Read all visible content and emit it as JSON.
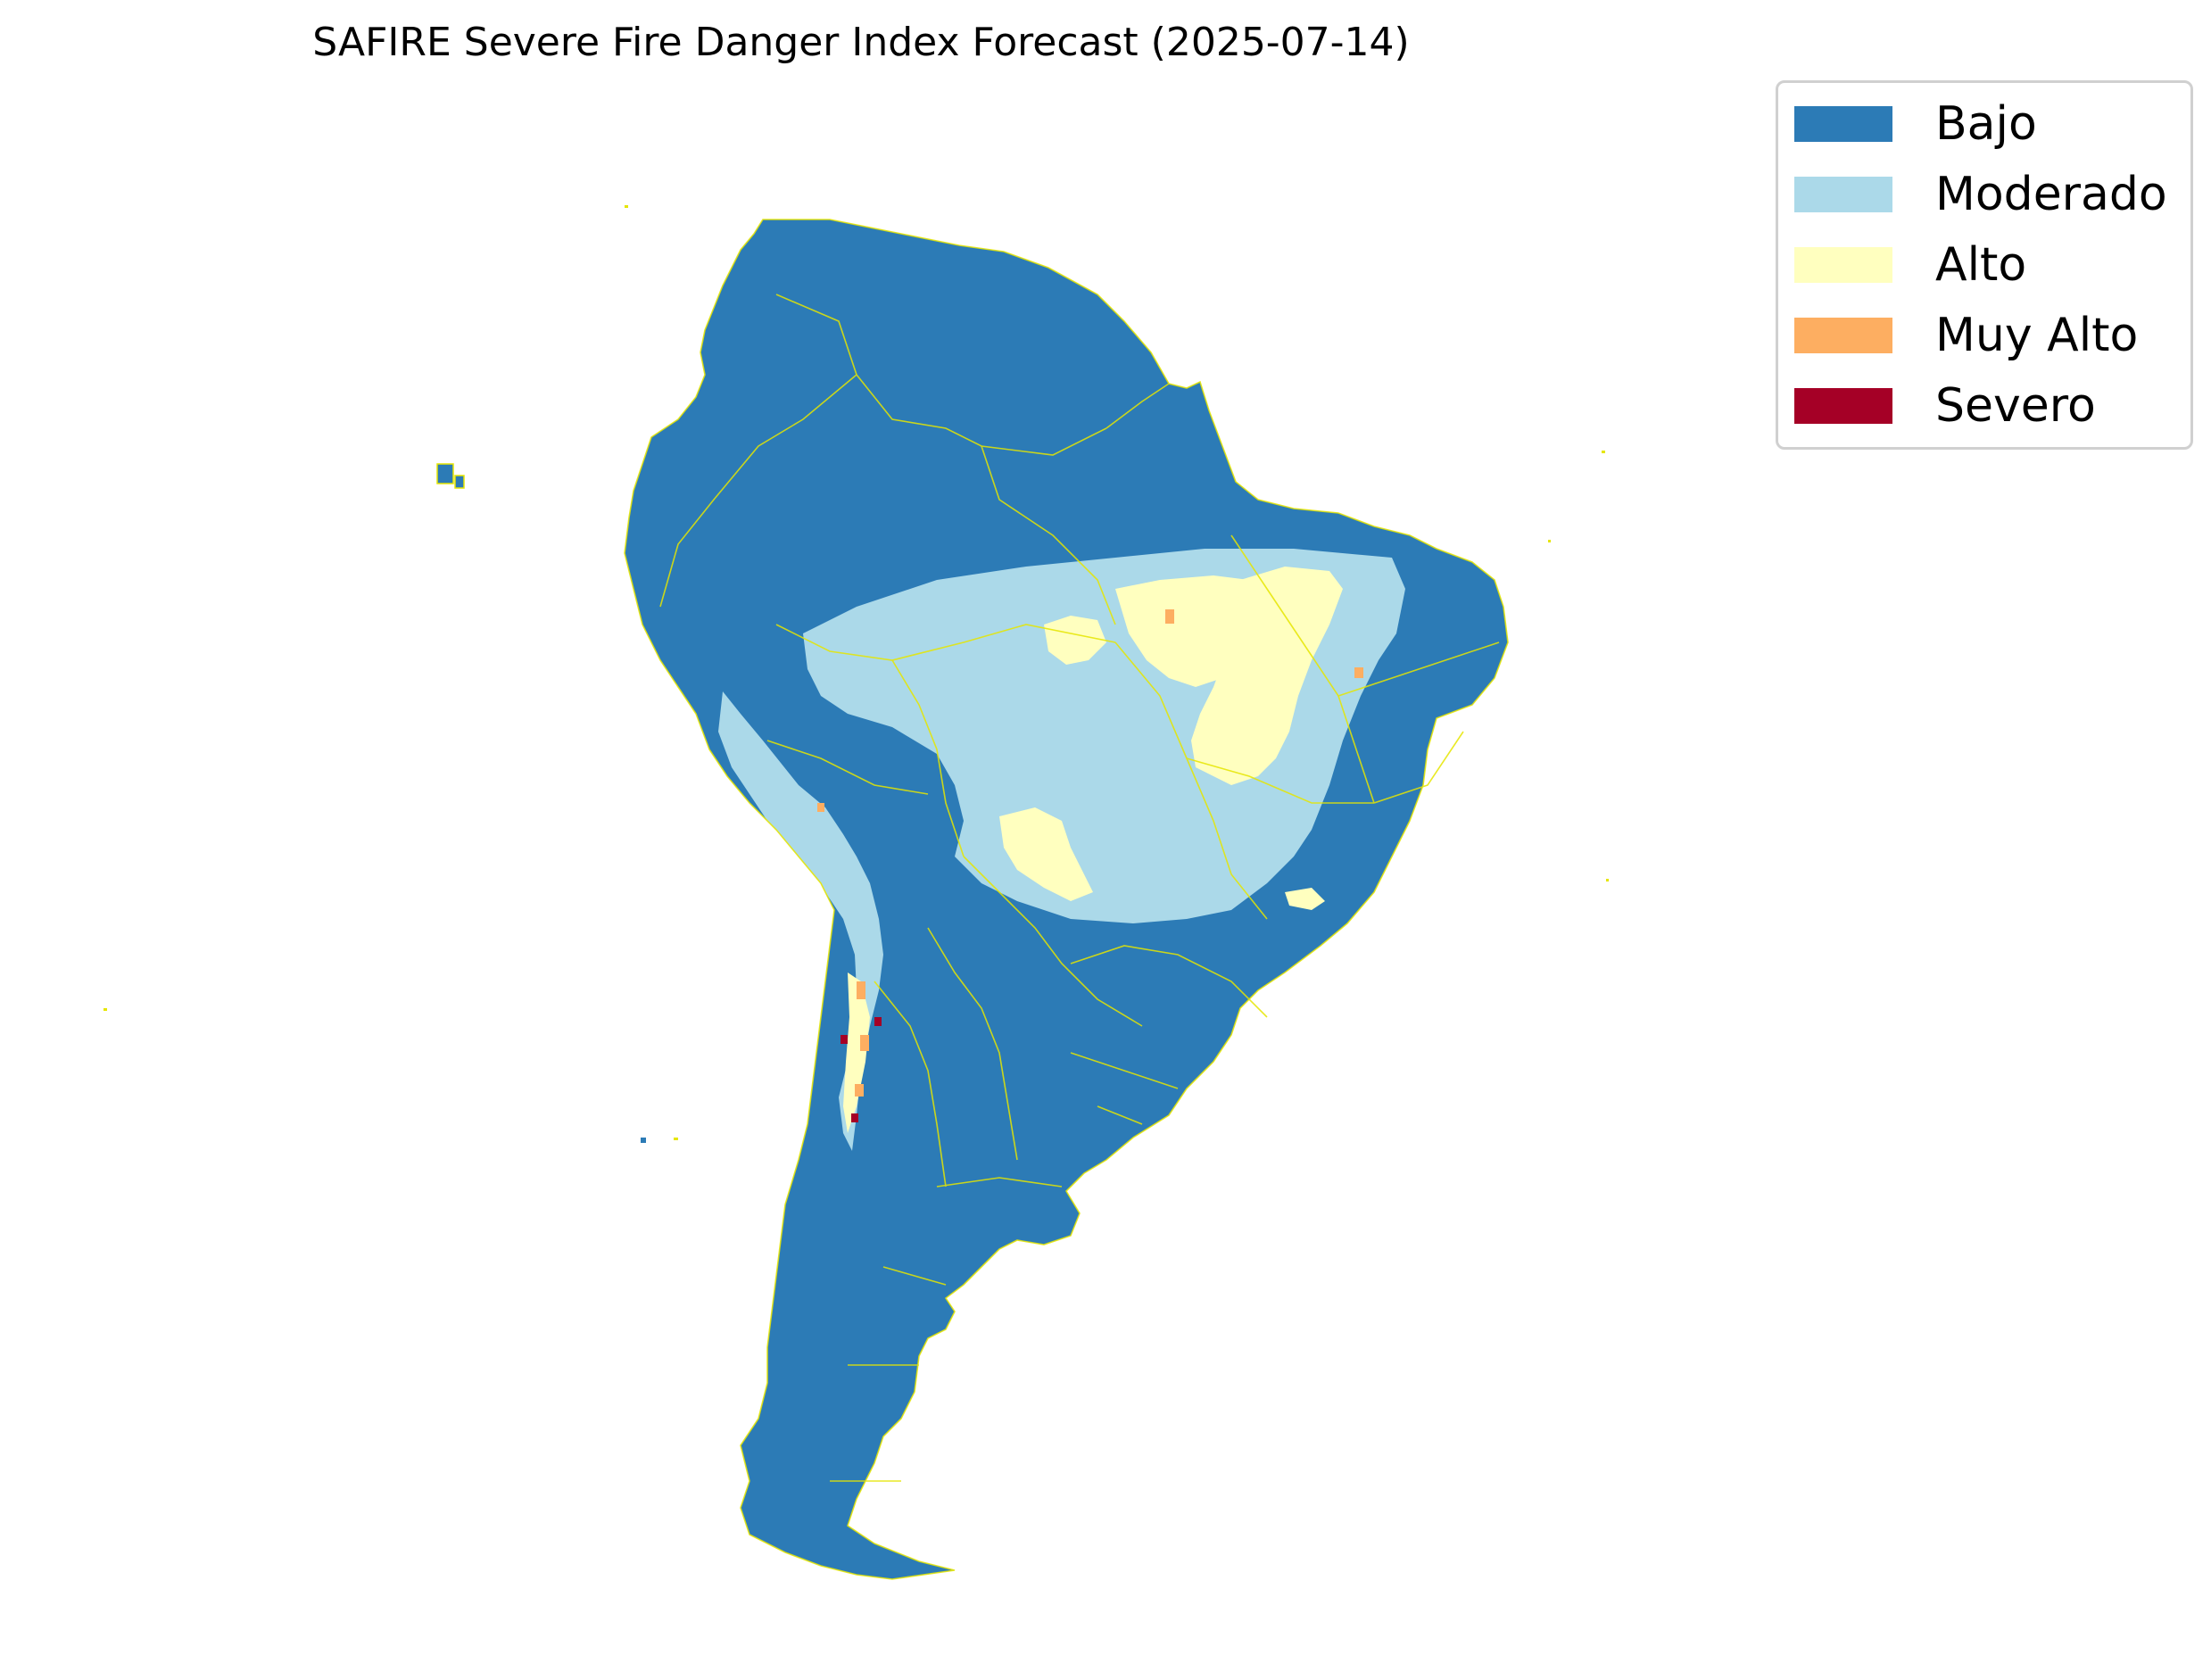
{
  "title": "SAFIRE Severe Fire Danger Index Forecast (2025-07-14)",
  "legend": {
    "items": [
      {
        "label": "Bajo",
        "color": "#2c7bb6"
      },
      {
        "label": "Moderado",
        "color": "#abd9e9"
      },
      {
        "label": "Alto",
        "color": "#ffffbf"
      },
      {
        "label": "Muy Alto",
        "color": "#fdae61"
      },
      {
        "label": "Severo",
        "color": "#a50026"
      }
    ]
  },
  "map": {
    "region": "South America",
    "border_color": "#e6e600",
    "background": "#ffffff"
  }
}
